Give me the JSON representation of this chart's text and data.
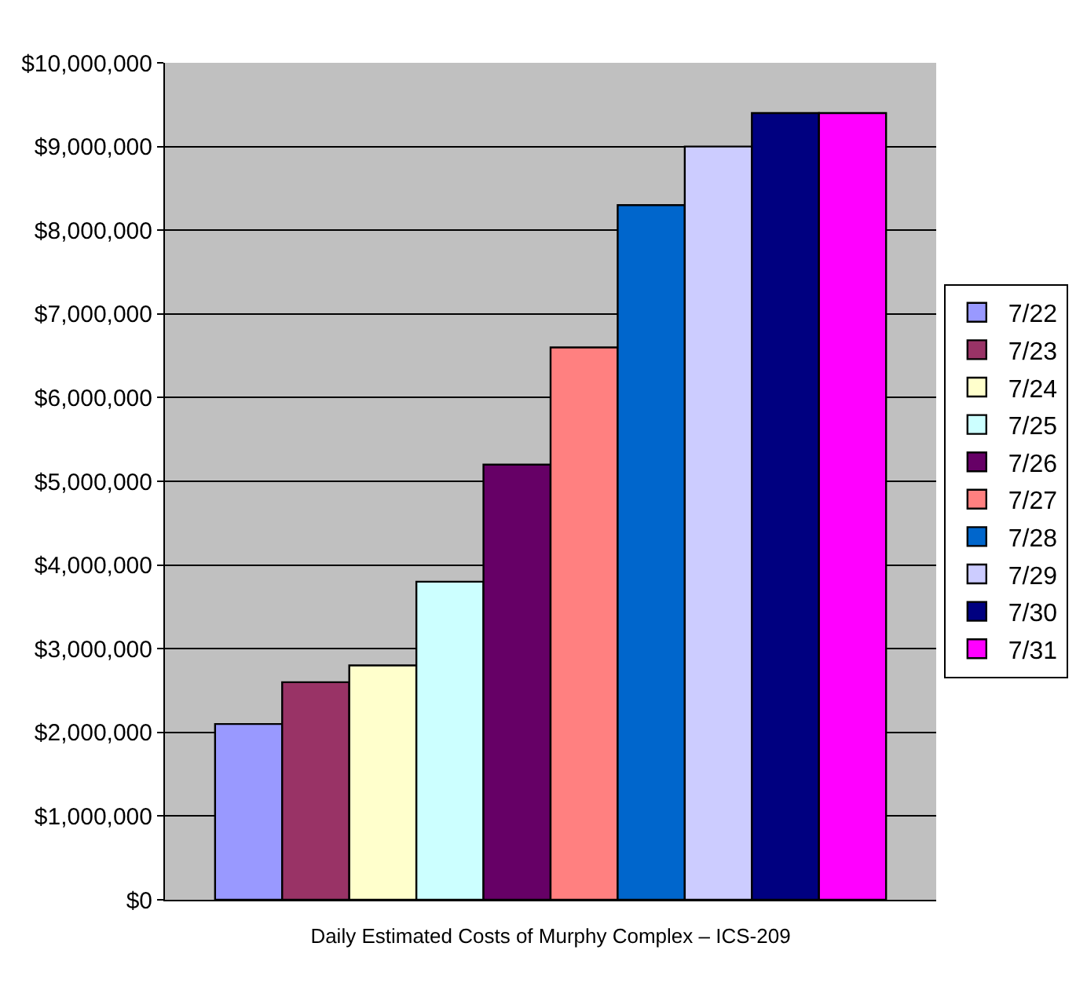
{
  "chart_data": {
    "type": "bar",
    "xlabel": "Daily Estimated Costs of Murphy Complex – ICS-209",
    "categories": [
      null
    ],
    "series": [
      {
        "name": "7/22",
        "color": "#9999ff",
        "values": [
          2100000
        ]
      },
      {
        "name": "7/23",
        "color": "#993366",
        "values": [
          2600000
        ]
      },
      {
        "name": "7/24",
        "color": "#ffffcc",
        "values": [
          2800000
        ]
      },
      {
        "name": "7/25",
        "color": "#ccffff",
        "values": [
          3800000
        ]
      },
      {
        "name": "7/26",
        "color": "#660066",
        "values": [
          5200000
        ]
      },
      {
        "name": "7/27",
        "color": "#ff8080",
        "values": [
          6600000
        ]
      },
      {
        "name": "7/28",
        "color": "#0066cc",
        "values": [
          8300000
        ]
      },
      {
        "name": "7/29",
        "color": "#ccccff",
        "values": [
          9000000
        ]
      },
      {
        "name": "7/30",
        "color": "#000080",
        "values": [
          9400000
        ]
      },
      {
        "name": "7/31",
        "color": "#ff00ff",
        "values": [
          9400000
        ]
      }
    ],
    "ylim": [
      0,
      10000000
    ],
    "yticks": [
      {
        "value": 0,
        "label": "$0"
      },
      {
        "value": 1000000,
        "label": "$1,000,000"
      },
      {
        "value": 2000000,
        "label": "$2,000,000"
      },
      {
        "value": 3000000,
        "label": "$3,000,000"
      },
      {
        "value": 4000000,
        "label": "$4,000,000"
      },
      {
        "value": 5000000,
        "label": "$5,000,000"
      },
      {
        "value": 6000000,
        "label": "$6,000,000"
      },
      {
        "value": 7000000,
        "label": "$7,000,000"
      },
      {
        "value": 8000000,
        "label": "$8,000,000"
      },
      {
        "value": 9000000,
        "label": "$9,000,000"
      },
      {
        "value": 10000000,
        "label": "$10,000,000"
      }
    ],
    "grid": "y",
    "legend": "right",
    "tick_labels": "y"
  }
}
